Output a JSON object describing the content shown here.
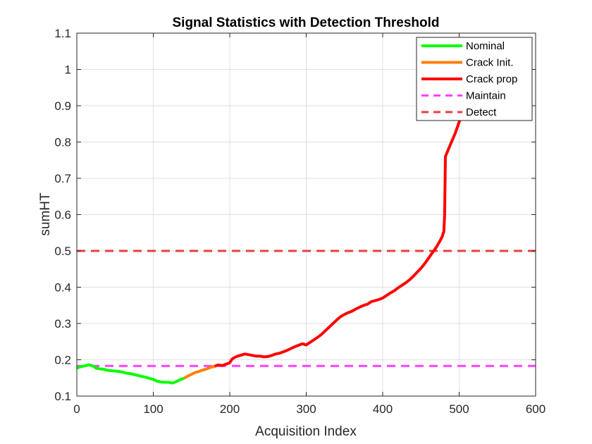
{
  "chart_data": {
    "type": "line",
    "title": "Signal Statistics with Detection Threshold",
    "xlabel": "Acquisition Index",
    "ylabel": "sumHT",
    "xlim": [
      0,
      600
    ],
    "ylim": [
      0.1,
      1.1
    ],
    "xticks": [
      "0",
      "100",
      "200",
      "300",
      "400",
      "500",
      "600"
    ],
    "yticks": [
      "0.1",
      "0.2",
      "0.3",
      "0.4",
      "0.5",
      "0.6",
      "0.7",
      "0.8",
      "0.9",
      "1",
      "1.1"
    ],
    "grid": true,
    "legend_position": "top-right",
    "series": [
      {
        "name": "Nominal",
        "color": "#00ff00",
        "style": "solid",
        "x": [
          0,
          5,
          10,
          15,
          18,
          22,
          25,
          30,
          35,
          40,
          45,
          50,
          55,
          60,
          65,
          70,
          75,
          80,
          85,
          90,
          95,
          100,
          105,
          110,
          115,
          120,
          125,
          128,
          132,
          136,
          140
        ],
        "y": [
          0.177,
          0.181,
          0.183,
          0.186,
          0.185,
          0.182,
          0.177,
          0.175,
          0.174,
          0.171,
          0.17,
          0.169,
          0.168,
          0.166,
          0.163,
          0.162,
          0.159,
          0.157,
          0.154,
          0.152,
          0.149,
          0.146,
          0.141,
          0.139,
          0.138,
          0.138,
          0.136,
          0.138,
          0.142,
          0.146,
          0.149
        ]
      },
      {
        "name": "Crack Init.",
        "color": "#ff7f00",
        "style": "solid",
        "x": [
          140,
          145,
          150,
          155,
          160,
          165,
          170,
          175,
          180
        ],
        "y": [
          0.149,
          0.155,
          0.16,
          0.165,
          0.168,
          0.172,
          0.175,
          0.179,
          0.182
        ]
      },
      {
        "name": "Crack prop",
        "color": "#ff0000",
        "style": "solid",
        "x": [
          180,
          185,
          190,
          195,
          200,
          203,
          206,
          210,
          215,
          220,
          225,
          230,
          235,
          240,
          245,
          250,
          255,
          260,
          265,
          270,
          275,
          280,
          285,
          290,
          295,
          300,
          305,
          310,
          315,
          320,
          325,
          330,
          335,
          340,
          345,
          350,
          355,
          360,
          365,
          370,
          375,
          380,
          385,
          390,
          395,
          400,
          405,
          410,
          415,
          420,
          425,
          430,
          435,
          440,
          445,
          450,
          455,
          460,
          465,
          470,
          475,
          478,
          479,
          480,
          481,
          482,
          485,
          490,
          495,
          500,
          505,
          510
        ],
        "y": [
          0.182,
          0.186,
          0.184,
          0.188,
          0.192,
          0.202,
          0.206,
          0.21,
          0.213,
          0.216,
          0.214,
          0.212,
          0.21,
          0.21,
          0.208,
          0.209,
          0.212,
          0.216,
          0.218,
          0.222,
          0.226,
          0.231,
          0.236,
          0.24,
          0.244,
          0.241,
          0.248,
          0.255,
          0.262,
          0.27,
          0.28,
          0.29,
          0.3,
          0.31,
          0.319,
          0.325,
          0.33,
          0.334,
          0.34,
          0.345,
          0.35,
          0.353,
          0.36,
          0.363,
          0.366,
          0.37,
          0.377,
          0.384,
          0.39,
          0.398,
          0.405,
          0.412,
          0.42,
          0.43,
          0.441,
          0.452,
          0.465,
          0.48,
          0.495,
          0.51,
          0.528,
          0.54,
          0.548,
          0.553,
          0.6,
          0.76,
          0.775,
          0.8,
          0.825,
          0.855,
          0.89,
          0.91
        ]
      },
      {
        "name": "Maintain",
        "color": "#ff40ff",
        "style": "dashed",
        "x": [
          0,
          600
        ],
        "y": [
          0.183,
          0.183
        ]
      },
      {
        "name": "Detect",
        "color": "#e8403c",
        "style": "dashed",
        "x": [
          0,
          600
        ],
        "y": [
          0.5,
          0.5
        ]
      }
    ]
  }
}
